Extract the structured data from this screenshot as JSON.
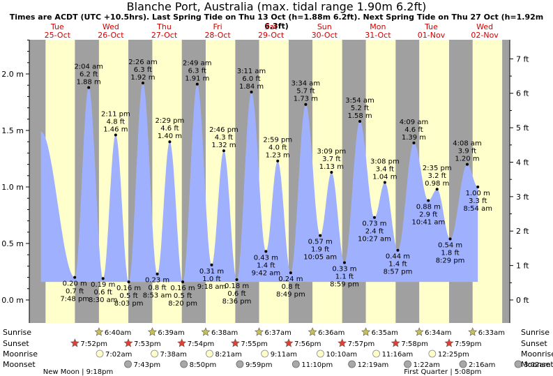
{
  "header": {
    "title": "Blanche Port, Australia (max. tidal range 1.90m 6.2ft)",
    "subtitle": "Times are ACDT (UTC +10.5hrs). Last Spring Tide on Thu 13 Oct (h=1.88m 6.2ft). Next Spring Tide on Thu 27 Oct (h=1.92m 6.3ft)"
  },
  "colors": {
    "day_band": "#ffffcc",
    "night_band": "#a0a0a0",
    "tide_fill": "#9fb0ff",
    "sun_marker": "#c8c05a",
    "sunset_marker": "#e04030",
    "moonrise_marker": "#ffffcc",
    "moonset_marker": "#a8a8a8",
    "day_text": "#d00000"
  },
  "chart_data": {
    "type": "area",
    "title": "Blanche Port, Australia (max. tidal range 1.90m 6.2ft)",
    "x_axis": "time (days 25-Oct to 02-Nov)",
    "y_left": {
      "unit": "m",
      "range": [
        0,
        2.3
      ],
      "ticks": [
        "0.0 m",
        "0.5 m",
        "1.0 m",
        "1.5 m",
        "2.0 m"
      ],
      "tick_values": [
        0,
        0.5,
        1.0,
        1.5,
        2.0
      ]
    },
    "y_right": {
      "unit": "ft",
      "ticks": [
        "0 ft",
        "1 ft",
        "2 ft",
        "3 ft",
        "4 ft",
        "5 ft",
        "6 ft",
        "7 ft"
      ],
      "tick_values": [
        0,
        1,
        2,
        3,
        4,
        5,
        6,
        7
      ]
    },
    "days": [
      {
        "name": "Tue",
        "date": "25-Oct"
      },
      {
        "name": "Wed",
        "date": "26-Oct"
      },
      {
        "name": "Thu",
        "date": "27-Oct"
      },
      {
        "name": "Fri",
        "date": "28-Oct"
      },
      {
        "name": "Sat",
        "date": "29-Oct"
      },
      {
        "name": "Sun",
        "date": "30-Oct"
      },
      {
        "name": "Mon",
        "date": "31-Oct"
      },
      {
        "name": "Tue",
        "date": "01-Nov"
      },
      {
        "name": "Wed",
        "date": "02-Nov"
      }
    ],
    "tides": [
      {
        "day": 0,
        "hour": 4.6,
        "m": 1.49,
        "labeled": false
      },
      {
        "day": 0,
        "hour": 19.8,
        "m": 0.2,
        "type": "low",
        "time": "7:48 pm",
        "ft_label": "0.7 ft",
        "m_label": "0.20 m"
      },
      {
        "day": 1,
        "hour": 2.07,
        "m": 1.88,
        "type": "high",
        "time": "2:04 am",
        "ft_label": "6.2 ft",
        "m_label": "1.88 m"
      },
      {
        "day": 1,
        "hour": 8.5,
        "m": 0.19,
        "type": "low",
        "time": "8:30 am",
        "ft_label": "0.6 ft",
        "m_label": "0.19 m"
      },
      {
        "day": 1,
        "hour": 14.18,
        "m": 1.46,
        "type": "high",
        "time": "2:11 pm",
        "ft_label": "4.8 ft",
        "m_label": "1.46 m"
      },
      {
        "day": 1,
        "hour": 20.05,
        "m": 0.16,
        "type": "low",
        "time": "8:03 pm",
        "ft_label": "0.5 ft",
        "m_label": "0.16 m"
      },
      {
        "day": 2,
        "hour": 2.43,
        "m": 1.92,
        "type": "high",
        "time": "2:26 am",
        "ft_label": "6.3 ft",
        "m_label": "1.92 m"
      },
      {
        "day": 2,
        "hour": 8.88,
        "m": 0.23,
        "type": "low",
        "time": "8:53 am",
        "ft_label": "0.8 ft",
        "m_label": "0.23 m"
      },
      {
        "day": 2,
        "hour": 14.48,
        "m": 1.4,
        "type": "high",
        "time": "2:29 pm",
        "ft_label": "4.6 ft",
        "m_label": "1.40 m"
      },
      {
        "day": 2,
        "hour": 20.33,
        "m": 0.16,
        "type": "low",
        "time": "8:20 pm",
        "ft_label": "0.5 ft",
        "m_label": "0.16 m"
      },
      {
        "day": 3,
        "hour": 2.82,
        "m": 1.91,
        "type": "high",
        "time": "2:49 am",
        "ft_label": "6.3 ft",
        "m_label": "1.91 m"
      },
      {
        "day": 3,
        "hour": 9.3,
        "m": 0.31,
        "type": "low",
        "time": "9:18 am",
        "ft_label": "1.0 ft",
        "m_label": "0.31 m"
      },
      {
        "day": 3,
        "hour": 14.77,
        "m": 1.32,
        "type": "high",
        "time": "2:46 pm",
        "ft_label": "4.3 ft",
        "m_label": "1.32 m"
      },
      {
        "day": 3,
        "hour": 20.6,
        "m": 0.18,
        "type": "low",
        "time": "8:36 pm",
        "ft_label": "0.6 ft",
        "m_label": "0.18 m"
      },
      {
        "day": 4,
        "hour": 3.18,
        "m": 1.84,
        "type": "high",
        "time": "3:11 am",
        "ft_label": "6.0 ft",
        "m_label": "1.84 m"
      },
      {
        "day": 4,
        "hour": 9.7,
        "m": 0.43,
        "type": "low",
        "time": "9:42 am",
        "ft_label": "1.4 ft",
        "m_label": "0.43 m"
      },
      {
        "day": 4,
        "hour": 14.98,
        "m": 1.23,
        "type": "high",
        "time": "2:59 pm",
        "ft_label": "4.0 ft",
        "m_label": "1.23 m"
      },
      {
        "day": 4,
        "hour": 20.82,
        "m": 0.24,
        "type": "low",
        "time": "8:49 pm",
        "ft_label": "0.8 ft",
        "m_label": "0.24 m"
      },
      {
        "day": 5,
        "hour": 3.57,
        "m": 1.73,
        "type": "high",
        "time": "3:34 am",
        "ft_label": "5.7 ft",
        "m_label": "1.73 m"
      },
      {
        "day": 5,
        "hour": 10.08,
        "m": 0.57,
        "type": "low",
        "time": "10:05 am",
        "ft_label": "1.9 ft",
        "m_label": "0.57 m"
      },
      {
        "day": 5,
        "hour": 15.15,
        "m": 1.13,
        "type": "high",
        "time": "3:09 pm",
        "ft_label": "3.7 ft",
        "m_label": "1.13 m"
      },
      {
        "day": 5,
        "hour": 20.98,
        "m": 0.33,
        "type": "low",
        "time": "8:59 pm",
        "ft_label": "1.1 ft",
        "m_label": "0.33 m"
      },
      {
        "day": 6,
        "hour": 3.9,
        "m": 1.58,
        "type": "high",
        "time": "3:54 am",
        "ft_label": "5.2 ft",
        "m_label": "1.58 m"
      },
      {
        "day": 6,
        "hour": 10.45,
        "m": 0.73,
        "type": "low",
        "time": "10:27 am",
        "ft_label": "2.4 ft",
        "m_label": "0.73 m"
      },
      {
        "day": 6,
        "hour": 15.13,
        "m": 1.04,
        "type": "high",
        "time": "3:08 pm",
        "ft_label": "3.4 ft",
        "m_label": "1.04 m"
      },
      {
        "day": 6,
        "hour": 20.95,
        "m": 0.44,
        "type": "low",
        "time": "8:57 pm",
        "ft_label": "1.4 ft",
        "m_label": "0.44 m"
      },
      {
        "day": 7,
        "hour": 4.15,
        "m": 1.39,
        "type": "high",
        "time": "4:09 am",
        "ft_label": "4.6 ft",
        "m_label": "1.39 m"
      },
      {
        "day": 7,
        "hour": 10.68,
        "m": 0.88,
        "type": "low",
        "time": "10:41 am",
        "ft_label": "2.9 ft",
        "m_label": "0.88 m"
      },
      {
        "day": 7,
        "hour": 14.58,
        "m": 0.98,
        "type": "high",
        "time": "2:35 pm",
        "ft_label": "3.2 ft",
        "m_label": "0.98 m"
      },
      {
        "day": 7,
        "hour": 20.48,
        "m": 0.54,
        "type": "low",
        "time": "8:29 pm",
        "ft_label": "1.8 ft",
        "m_label": "0.54 m"
      },
      {
        "day": 8,
        "hour": 4.13,
        "m": 1.2,
        "type": "high",
        "time": "4:08 am",
        "ft_label": "3.9 ft",
        "m_label": "1.20 m"
      },
      {
        "day": 8,
        "hour": 8.9,
        "m": 1.0,
        "type": "low",
        "time": "8:54 am",
        "ft_label": "3.3 ft",
        "m_label": "1.00 m"
      }
    ],
    "astro": {
      "row_labels": [
        "Sunrise",
        "Sunset",
        "Moonrise",
        "Moonset"
      ],
      "sunrise": [
        {
          "day": 1,
          "hour": 6.67,
          "time": "6:40am"
        },
        {
          "day": 2,
          "hour": 6.65,
          "time": "6:39am"
        },
        {
          "day": 3,
          "hour": 6.63,
          "time": "6:38am"
        },
        {
          "day": 4,
          "hour": 6.62,
          "time": "6:37am"
        },
        {
          "day": 5,
          "hour": 6.6,
          "time": "6:36am"
        },
        {
          "day": 6,
          "hour": 6.58,
          "time": "6:35am"
        },
        {
          "day": 7,
          "hour": 6.57,
          "time": "6:34am"
        },
        {
          "day": 8,
          "hour": 6.55,
          "time": "6:33am"
        }
      ],
      "sunset": [
        {
          "day": 0,
          "hour": 19.87,
          "time": "7:52pm"
        },
        {
          "day": 1,
          "hour": 19.88,
          "time": "7:53pm"
        },
        {
          "day": 2,
          "hour": 19.9,
          "time": "7:54pm"
        },
        {
          "day": 3,
          "hour": 19.92,
          "time": "7:55pm"
        },
        {
          "day": 4,
          "hour": 19.93,
          "time": "7:56pm"
        },
        {
          "day": 5,
          "hour": 19.95,
          "time": "7:57pm"
        },
        {
          "day": 6,
          "hour": 19.97,
          "time": "7:58pm"
        },
        {
          "day": 7,
          "hour": 19.98,
          "time": "7:59pm"
        }
      ],
      "moonrise": [
        {
          "day": 1,
          "hour": 7.03,
          "time": "7:02am"
        },
        {
          "day": 2,
          "hour": 7.63,
          "time": "7:38am"
        },
        {
          "day": 3,
          "hour": 8.35,
          "time": "8:21am"
        },
        {
          "day": 4,
          "hour": 9.18,
          "time": "9:11am"
        },
        {
          "day": 5,
          "hour": 10.17,
          "time": "10:10am"
        },
        {
          "day": 6,
          "hour": 11.27,
          "time": "11:16am"
        },
        {
          "day": 7,
          "hour": 12.42,
          "time": "12:25pm"
        }
      ],
      "moonset": [
        {
          "day": 1,
          "hour": 19.72,
          "time": "7:43pm"
        },
        {
          "day": 2,
          "hour": 20.83,
          "time": "8:50pm"
        },
        {
          "day": 3,
          "hour": 21.98,
          "time": "9:59pm"
        },
        {
          "day": 4,
          "hour": 23.17,
          "time": "11:10pm"
        },
        {
          "day": 6,
          "hour": 0.32,
          "time": "12:19am"
        },
        {
          "day": 7,
          "hour": 1.37,
          "time": "1:22am"
        },
        {
          "day": 8,
          "hour": 2.27,
          "time": "2:16am"
        },
        {
          "day": 9,
          "hour": 3.03,
          "time": "3:02am"
        }
      ],
      "moon_phases": [
        {
          "label": "New Moon | 9:18pm",
          "day": 0,
          "hour": 21.3
        },
        {
          "label": "First Quarter | 5:08pm",
          "day": 7,
          "hour": 17.13
        }
      ]
    }
  }
}
